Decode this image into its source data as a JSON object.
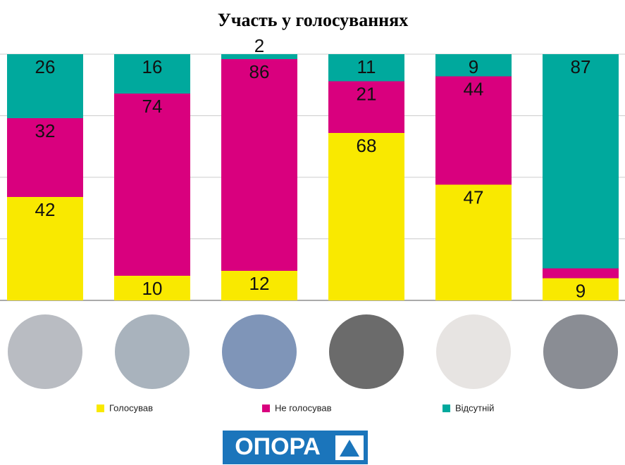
{
  "chart_data": {
    "type": "stacked_bar",
    "title": "Участь у голосуваннях",
    "categories": [
      null,
      null,
      null,
      null,
      null,
      null
    ],
    "series": [
      {
        "name": "Голосував",
        "color": "#f9e900",
        "values": [
          42,
          10,
          12,
          68,
          47,
          9
        ]
      },
      {
        "name": "Не голосував",
        "color": "#d9007e",
        "values": [
          32,
          74,
          86,
          21,
          44,
          4
        ]
      },
      {
        "name": "Відсутній",
        "color": "#00a99d",
        "values": [
          26,
          16,
          2,
          11,
          9,
          87
        ]
      }
    ],
    "ylim": [
      0,
      100
    ],
    "yticks": [
      0,
      25,
      50,
      75,
      100
    ],
    "grid": true
  },
  "logo": "ОПОРА"
}
